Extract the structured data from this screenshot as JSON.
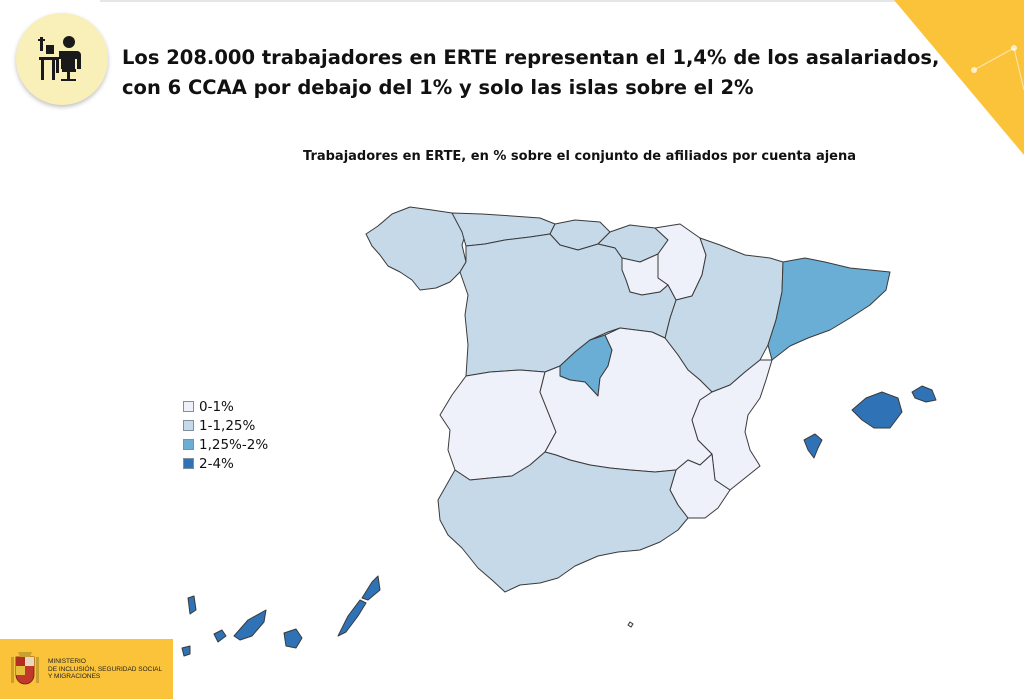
{
  "slide": {
    "headline_lines": [
      "Los 208.000 trabajadores en ERTE representan el 1,4% de los asalariados,",
      "con 6 CCAA por debajo del 1% y solo las islas sobre el 2%"
    ],
    "subtitle": "Trabajadores en ERTE, en % sobre el conjunto de afiliados por cuenta ajena",
    "icon": "office-worker-desk-icon",
    "accent_color": "#fbc33a"
  },
  "map": {
    "legend": [
      {
        "label": "0-1%",
        "color": "#eff1fa"
      },
      {
        "label": "1-1,25%",
        "color": "#c6d9e8"
      },
      {
        "label": "1,25%-2%",
        "color": "#6aaed6"
      },
      {
        "label": "2-4%",
        "color": "#2f73b6"
      }
    ],
    "regions": [
      {
        "name": "Galicia",
        "band": "1-1,25%"
      },
      {
        "name": "Asturias",
        "band": "1-1,25%"
      },
      {
        "name": "Cantabria",
        "band": "1-1,25%"
      },
      {
        "name": "País Vasco",
        "band": "1-1,25%"
      },
      {
        "name": "La Rioja",
        "band": "0-1%"
      },
      {
        "name": "Navarra",
        "band": "0-1%"
      },
      {
        "name": "Aragón",
        "band": "1-1,25%"
      },
      {
        "name": "Cataluña",
        "band": "1,25%-2%"
      },
      {
        "name": "Castilla y León",
        "band": "1-1,25%"
      },
      {
        "name": "Madrid",
        "band": "1,25%-2%"
      },
      {
        "name": "Extremadura",
        "band": "0-1%"
      },
      {
        "name": "Castilla-La Mancha",
        "band": "0-1%"
      },
      {
        "name": "Comunitat Valenciana",
        "band": "0-1%"
      },
      {
        "name": "Murcia",
        "band": "0-1%"
      },
      {
        "name": "Andalucía",
        "band": "1-1,25%"
      },
      {
        "name": "Illes Balears",
        "band": "2-4%"
      },
      {
        "name": "Canarias",
        "band": "2-4%"
      }
    ]
  },
  "logo": {
    "lines": [
      "MINISTERIO",
      "DE INCLUSIÓN, SEGURIDAD SOCIAL",
      "Y MIGRACIONES"
    ]
  }
}
